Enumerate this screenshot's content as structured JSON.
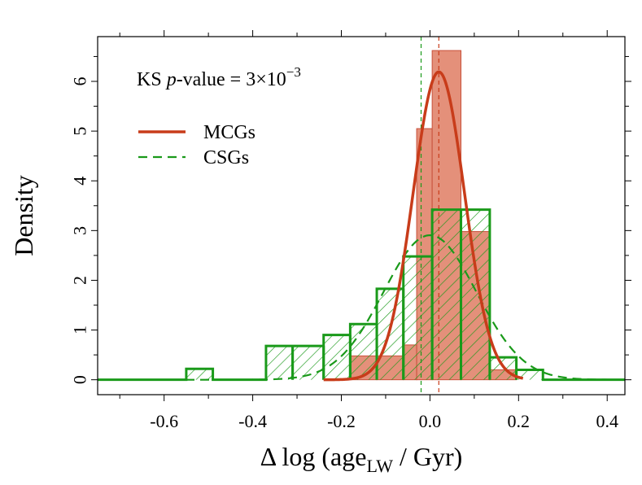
{
  "chart_data": {
    "type": "histogram",
    "xlabel": "Δ log (age",
    "xlabel_sub": "LW",
    "xlabel_tail": " / Gyr)",
    "ylabel": "Density",
    "xlim": [
      -0.75,
      0.44
    ],
    "ylim": [
      -0.3,
      6.9
    ],
    "xticks": [
      -0.6,
      -0.4,
      -0.2,
      0.0,
      0.2,
      0.4
    ],
    "xtick_labels": [
      "-0.6",
      "-0.4",
      "-0.2",
      "0.0",
      "0.2",
      "0.4"
    ],
    "yticks": [
      0,
      1,
      2,
      3,
      4,
      5,
      6
    ],
    "ytick_labels": [
      "0",
      "1",
      "2",
      "3",
      "4",
      "5",
      "6"
    ],
    "annotation": {
      "prefix": "KS ",
      "p": "p",
      "mid": "-value = 3×10",
      "sup": "−3"
    },
    "legend": [
      {
        "name": "MCGs",
        "style": "solid",
        "color": "#c83c1a"
      },
      {
        "name": "CSGs",
        "style": "dashed",
        "color": "#1a9a1a"
      }
    ],
    "series": [
      {
        "name": "MCGs",
        "kind": "histogram",
        "fill": "#e4907a",
        "stroke": "#c8503a",
        "edges": [
          -0.18,
          -0.12,
          -0.06,
          -0.03,
          0.005,
          0.07,
          0.135,
          0.195
        ],
        "values": [
          0.48,
          0.48,
          0.7,
          5.05,
          6.62,
          2.98,
          0.2
        ],
        "mean": 0.02,
        "curve": {
          "mu": 0.02,
          "sigma": 0.058,
          "scale": 0.9,
          "from": -0.24,
          "to": 0.21
        }
      },
      {
        "name": "CSGs",
        "kind": "histogram",
        "hatch": true,
        "stroke": "#1a9a1a",
        "edges": [
          -0.55,
          -0.49,
          -0.37,
          -0.31,
          -0.24,
          -0.18,
          -0.12,
          -0.06,
          0.005,
          0.07,
          0.135,
          0.195,
          0.255
        ],
        "values": [
          0.22,
          0.0,
          0.68,
          0.68,
          0.9,
          1.12,
          1.83,
          2.48,
          3.42,
          3.42,
          0.45,
          0.2
        ],
        "mean": -0.02,
        "curve": {
          "mu": 0.0,
          "sigma": 0.105,
          "scale": 0.765,
          "from": -0.75,
          "to": 0.44
        }
      }
    ]
  }
}
